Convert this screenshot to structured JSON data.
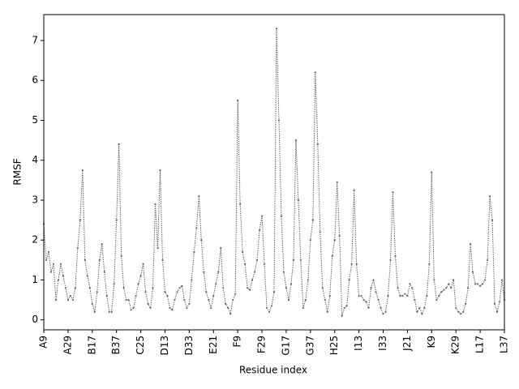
{
  "chart_data": {
    "type": "line",
    "xlabel": "Residue index",
    "ylabel": "RMSF",
    "categories": [
      "A9",
      null,
      null,
      null,
      null,
      null,
      null,
      null,
      null,
      null,
      "A29",
      null,
      null,
      null,
      null,
      null,
      null,
      null,
      null,
      null,
      "B17",
      null,
      null,
      null,
      null,
      null,
      null,
      null,
      null,
      null,
      "B37",
      null,
      null,
      null,
      null,
      null,
      null,
      null,
      null,
      null,
      "C25",
      null,
      null,
      null,
      null,
      null,
      null,
      null,
      null,
      null,
      "D13",
      null,
      null,
      null,
      null,
      null,
      null,
      null,
      null,
      null,
      "D33",
      null,
      null,
      null,
      null,
      null,
      null,
      null,
      null,
      null,
      "E21",
      null,
      null,
      null,
      null,
      null,
      null,
      null,
      null,
      null,
      "F9",
      null,
      null,
      null,
      null,
      null,
      null,
      null,
      null,
      null,
      "F29",
      null,
      null,
      null,
      null,
      null,
      null,
      null,
      null,
      null,
      "G17",
      null,
      null,
      null,
      null,
      null,
      null,
      null,
      null,
      null,
      "G37",
      null,
      null,
      null,
      null,
      null,
      null,
      null,
      null,
      null,
      "H25",
      null,
      null,
      null,
      null,
      null,
      null,
      null,
      null,
      null,
      "I13",
      null,
      null,
      null,
      null,
      null,
      null,
      null,
      null,
      null,
      "I33",
      null,
      null,
      null,
      null,
      null,
      null,
      null,
      null,
      null,
      "J21",
      null,
      null,
      null,
      null,
      null,
      null,
      null,
      null,
      null,
      "K9",
      null,
      null,
      null,
      null,
      null,
      null,
      null,
      null,
      null,
      "K29",
      null,
      null,
      null,
      null,
      null,
      null,
      null,
      null,
      null,
      "L17",
      null,
      null,
      null,
      null,
      null,
      null,
      null,
      null,
      null,
      "L37"
    ],
    "series": [
      {
        "color": "#666666",
        "values": [
          2.4,
          1.5,
          1.7,
          1.2,
          1.4,
          0.5,
          1.0,
          1.4,
          1.1,
          0.8,
          0.5,
          0.6,
          0.5,
          0.8,
          1.8,
          2.5,
          3.75,
          1.5,
          1.1,
          0.8,
          0.4,
          0.2,
          0.7,
          1.5,
          1.9,
          1.2,
          0.6,
          0.2,
          0.2,
          0.9,
          2.5,
          4.4,
          1.6,
          0.8,
          0.5,
          0.5,
          0.25,
          0.3,
          0.6,
          0.9,
          1.1,
          1.4,
          0.7,
          0.4,
          0.3,
          0.8,
          2.9,
          1.8,
          3.75,
          1.5,
          0.7,
          0.6,
          0.3,
          0.25,
          0.5,
          0.7,
          0.8,
          0.85,
          0.5,
          0.3,
          0.4,
          1.0,
          1.7,
          2.3,
          3.1,
          2.0,
          1.2,
          0.7,
          0.5,
          0.3,
          0.6,
          0.9,
          1.2,
          1.8,
          0.8,
          0.4,
          0.3,
          0.15,
          0.5,
          0.65,
          5.5,
          2.9,
          1.7,
          1.4,
          0.8,
          0.75,
          1.0,
          1.2,
          1.5,
          2.25,
          2.6,
          1.4,
          0.3,
          0.2,
          0.35,
          0.7,
          7.3,
          5.0,
          2.6,
          1.2,
          0.8,
          0.5,
          0.9,
          1.5,
          4.5,
          3.0,
          1.5,
          0.3,
          0.5,
          1.0,
          2.0,
          2.5,
          6.2,
          4.4,
          2.2,
          0.8,
          0.5,
          0.2,
          0.6,
          1.6,
          2.0,
          3.45,
          2.1,
          0.1,
          0.3,
          0.35,
          1.0,
          1.4,
          3.25,
          1.4,
          0.6,
          0.6,
          0.5,
          0.45,
          0.3,
          0.8,
          1.0,
          0.7,
          0.5,
          0.3,
          0.15,
          0.2,
          0.6,
          1.5,
          3.2,
          1.6,
          0.8,
          0.6,
          0.6,
          0.65,
          0.6,
          0.9,
          0.8,
          0.5,
          0.2,
          0.3,
          0.15,
          0.3,
          0.6,
          1.4,
          3.7,
          1.0,
          0.5,
          0.6,
          0.7,
          0.75,
          0.8,
          0.9,
          0.8,
          1.0,
          0.3,
          0.2,
          0.15,
          0.2,
          0.4,
          0.8,
          1.9,
          1.2,
          0.9,
          0.9,
          0.85,
          0.9,
          1.0,
          1.5,
          3.1,
          2.5,
          0.4,
          0.2,
          0.45,
          1.0,
          0.5
        ]
      }
    ],
    "ylim": [
      -0.25,
      7.65
    ],
    "yticks": [
      0,
      1,
      2,
      3,
      4,
      5,
      6,
      7
    ]
  }
}
